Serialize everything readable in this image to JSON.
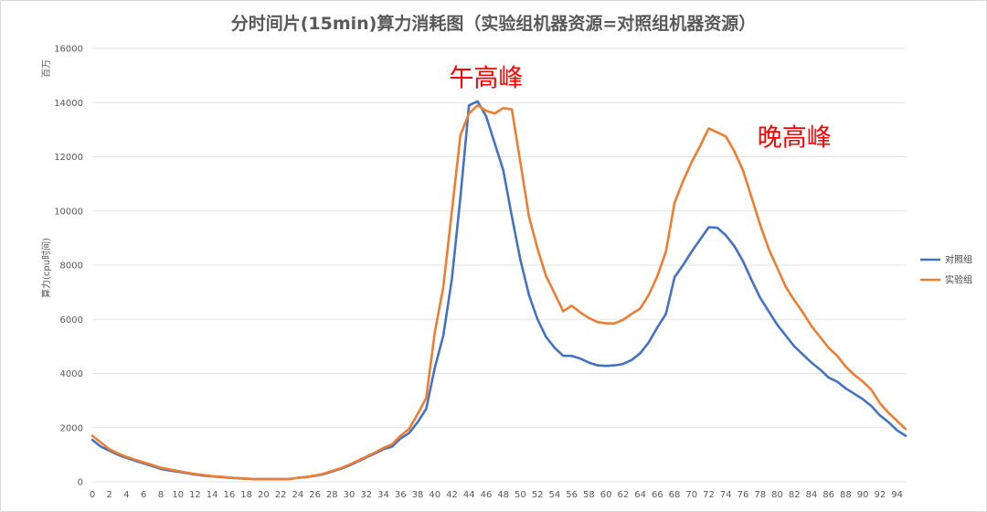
{
  "chart_data": {
    "type": "line",
    "title": "分时间片(15min)算力消耗图（实验组机器资源=对照组机器资源）",
    "ylabel": "算力(cpu时间)",
    "yunit": "百万",
    "xlabel": "",
    "ylim": [
      0,
      16000
    ],
    "yticks": [
      0,
      2000,
      4000,
      6000,
      8000,
      10000,
      12000,
      14000,
      16000
    ],
    "ytick_labels": [
      "0",
      "2000",
      "4000",
      "6000",
      "8000",
      "10000",
      "12000",
      "14000",
      "16000"
    ],
    "x": [
      0,
      1,
      2,
      3,
      4,
      5,
      6,
      7,
      8,
      9,
      10,
      11,
      12,
      13,
      14,
      15,
      16,
      17,
      18,
      19,
      20,
      21,
      22,
      23,
      24,
      25,
      26,
      27,
      28,
      29,
      30,
      31,
      32,
      33,
      34,
      35,
      36,
      37,
      38,
      39,
      40,
      41,
      42,
      43,
      44,
      45,
      46,
      47,
      48,
      49,
      50,
      51,
      52,
      53,
      54,
      55,
      56,
      57,
      58,
      59,
      60,
      61,
      62,
      63,
      64,
      65,
      66,
      67,
      68,
      69,
      70,
      71,
      72,
      73,
      74,
      75,
      76,
      77,
      78,
      79,
      80,
      81,
      82,
      83,
      84,
      85,
      86,
      87,
      88,
      89,
      90,
      91,
      92,
      93,
      94,
      95
    ],
    "xtick_labels": [
      "0",
      "2",
      "4",
      "6",
      "8",
      "10",
      "12",
      "14",
      "16",
      "18",
      "20",
      "22",
      "24",
      "26",
      "28",
      "30",
      "32",
      "34",
      "36",
      "38",
      "40",
      "42",
      "44",
      "46",
      "48",
      "50",
      "52",
      "54",
      "56",
      "58",
      "60",
      "62",
      "64",
      "66",
      "68",
      "70",
      "72",
      "74",
      "76",
      "78",
      "80",
      "82",
      "84",
      "86",
      "88",
      "90",
      "92",
      "94"
    ],
    "grid": true,
    "legend_position": "right",
    "series": [
      {
        "name": "对照组",
        "color": "#4472c4",
        "values": [
          1550,
          1300,
          1150,
          1000,
          880,
          780,
          680,
          580,
          480,
          420,
          370,
          320,
          270,
          230,
          200,
          180,
          150,
          130,
          110,
          100,
          100,
          100,
          100,
          100,
          150,
          180,
          220,
          280,
          380,
          480,
          600,
          750,
          900,
          1050,
          1200,
          1300,
          1600,
          1800,
          2200,
          2700,
          4200,
          5400,
          7500,
          10500,
          13900,
          14050,
          13500,
          12500,
          11500,
          9800,
          8200,
          6900,
          6000,
          5350,
          4950,
          4650,
          4650,
          4550,
          4400,
          4300,
          4280,
          4300,
          4350,
          4500,
          4750,
          5150,
          5700,
          6200,
          7550,
          8000,
          8500,
          8950,
          9400,
          9380,
          9100,
          8700,
          8150,
          7450,
          6800,
          6300,
          5800,
          5400,
          5000,
          4700,
          4400,
          4150,
          3850,
          3700,
          3450,
          3250,
          3050,
          2800,
          2450,
          2200,
          1900,
          1700
        ]
      },
      {
        "name": "实验组",
        "color": "#ed7d31",
        "values": [
          1700,
          1450,
          1200,
          1050,
          920,
          820,
          720,
          620,
          520,
          460,
          400,
          340,
          290,
          250,
          210,
          190,
          160,
          140,
          120,
          100,
          100,
          100,
          100,
          100,
          150,
          180,
          230,
          300,
          400,
          500,
          630,
          780,
          930,
          1080,
          1250,
          1380,
          1700,
          1950,
          2500,
          3100,
          5500,
          7200,
          10000,
          12800,
          13600,
          13900,
          13700,
          13600,
          13800,
          13750,
          11800,
          9800,
          8600,
          7600,
          6950,
          6300,
          6500,
          6250,
          6050,
          5900,
          5850,
          5850,
          5980,
          6200,
          6400,
          6900,
          7600,
          8500,
          10300,
          11100,
          11800,
          12400,
          13050,
          12900,
          12750,
          12200,
          11500,
          10500,
          9500,
          8600,
          7900,
          7200,
          6700,
          6250,
          5750,
          5350,
          4950,
          4650,
          4250,
          3950,
          3700,
          3400,
          2900,
          2550,
          2250,
          1950
        ]
      }
    ],
    "annotations": [
      {
        "text": "午高峰",
        "x": 46,
        "y": 14600,
        "color": "#ff0000"
      },
      {
        "text": "晚高峰",
        "x": 82,
        "y": 12400,
        "color": "#ff0000"
      }
    ]
  }
}
